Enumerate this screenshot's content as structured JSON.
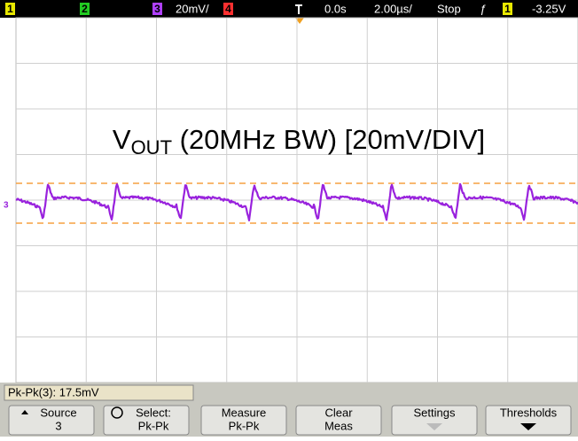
{
  "status_bar": {
    "channel_1": "1",
    "channel_2": "2",
    "channel_3": "3",
    "channel_3_scale": "20mV/",
    "channel_4": "4",
    "time_offset": "0.0s",
    "time_scale": "2.00µs/",
    "run_state": "Stop",
    "trigger_slope": "ƒ",
    "trigger_source": "1",
    "trigger_level": "-3.25V"
  },
  "screen": {
    "annotation": {
      "main": "V",
      "subscript": "OUT",
      "rest": " (20MHz BW) [20mV/DIV]"
    },
    "channel_marker": "3"
  },
  "measurement": "Pk-Pk(3): 17.5mV",
  "softkeys": [
    {
      "line1": "Source",
      "line2": "3"
    },
    {
      "line1": "Select:",
      "line2": "Pk-Pk"
    },
    {
      "line1": "Measure",
      "line2": "Pk-Pk"
    },
    {
      "line1": "Clear",
      "line2": "Meas"
    },
    {
      "line1": "Settings"
    },
    {
      "line1": "Thresholds"
    }
  ]
}
